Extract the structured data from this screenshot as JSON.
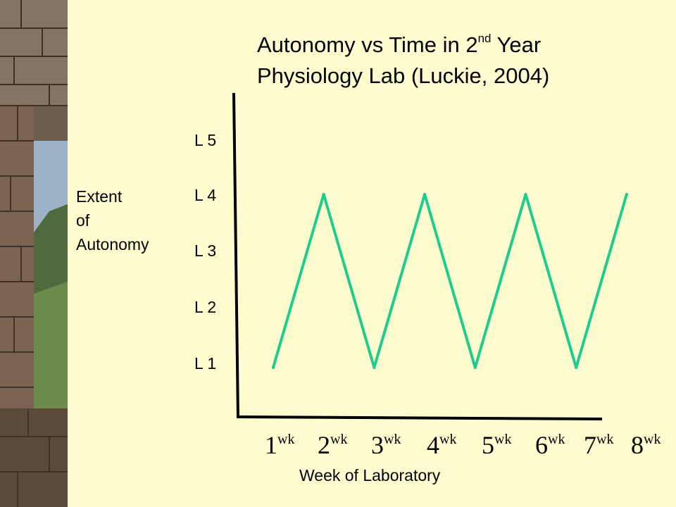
{
  "chart_data": {
    "type": "line",
    "title_line1": "Autonomy vs Time in 2",
    "title_sup": "nd",
    "title_rest": " Year",
    "title_line2": "Physiology Lab (Luckie, 2004)",
    "ylabel": [
      "Extent",
      "of",
      "Autonomy"
    ],
    "xlabel": "Week of Laboratory",
    "y_ticks": [
      "L 5",
      "L 4",
      "L 3",
      "L 2",
      "L 1"
    ],
    "x_ticks": [
      {
        "num": "1",
        "sup": "wk"
      },
      {
        "num": "2",
        "sup": "wk"
      },
      {
        "num": "3",
        "sup": "wk"
      },
      {
        "num": "4",
        "sup": "wk"
      },
      {
        "num": "5",
        "sup": "wk"
      },
      {
        "num": "6",
        "sup": "wk"
      },
      {
        "num": "7",
        "sup": "wk"
      },
      {
        "num": "8",
        "sup": "wk"
      }
    ],
    "series": [
      {
        "x": [
          1,
          2,
          3,
          4,
          5,
          6,
          7,
          8
        ],
        "y": [
          1,
          4,
          1,
          4,
          1,
          4,
          1,
          4
        ]
      }
    ],
    "line_color": "#1fcc8f",
    "grid": false
  }
}
